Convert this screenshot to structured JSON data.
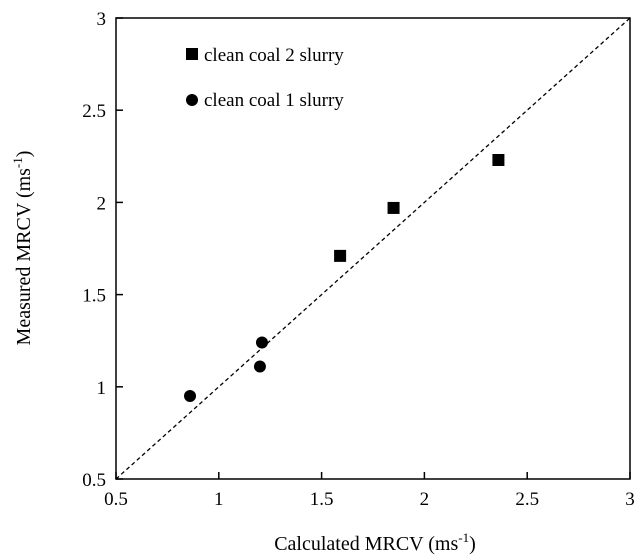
{
  "chart_data": {
    "type": "scatter",
    "xlabel": "Calculated MRCV (ms",
    "xlabel_sup": "-1",
    "xlabel_close": ")",
    "ylabel": "Measured MRCV (ms",
    "ylabel_sup": "-1",
    "ylabel_close": ")",
    "xlim": [
      0.5,
      3
    ],
    "ylim": [
      0.5,
      3
    ],
    "x_ticks": [
      "0.5",
      "1",
      "1.5",
      "2",
      "2.5",
      "3"
    ],
    "y_ticks": [
      "0.5",
      "1",
      "1.5",
      "2",
      "2.5",
      "3"
    ],
    "grid": false,
    "legend_position": "top-left",
    "reference_line": {
      "style": "dashed",
      "from": [
        0.5,
        0.5
      ],
      "to": [
        3,
        3
      ]
    },
    "series": [
      {
        "name": "clean coal 2 slurry",
        "marker": "square",
        "color": "#000000",
        "points": [
          {
            "x": 1.59,
            "y": 1.71
          },
          {
            "x": 1.85,
            "y": 1.97
          },
          {
            "x": 2.36,
            "y": 2.23
          }
        ]
      },
      {
        "name": "clean coal 1 slurry",
        "marker": "circle",
        "color": "#000000",
        "points": [
          {
            "x": 0.86,
            "y": 0.95
          },
          {
            "x": 1.2,
            "y": 1.11
          },
          {
            "x": 1.21,
            "y": 1.24
          }
        ]
      }
    ]
  }
}
